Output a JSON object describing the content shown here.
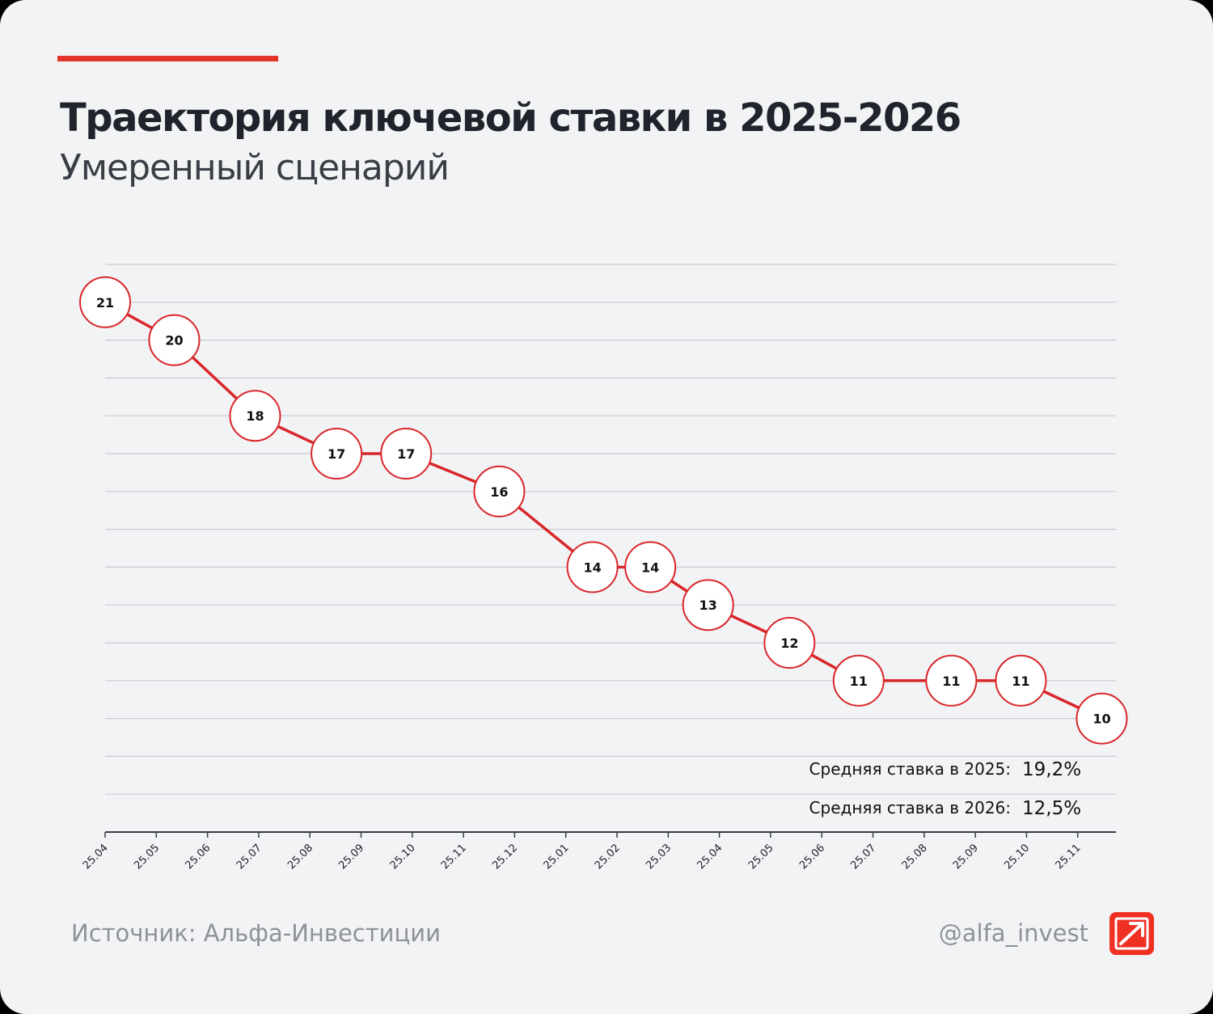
{
  "header": {
    "title": "Траектория ключевой ставки в 2025-2026",
    "subtitle": "Умеренный сценарий"
  },
  "footer": {
    "source": "Источник: Альфа-Инвестиции",
    "handle": "@alfa_invest"
  },
  "colors": {
    "accent": "#e4352a",
    "line": "#d9262a",
    "marker_fill": "#ffffff",
    "grid": "#c9cbd0",
    "axis": "#3a3d45",
    "text": "#20232b"
  },
  "chart_data": {
    "type": "line",
    "title": "Траектория ключевой ставки в 2025-2026",
    "subtitle": "Умеренный сценарий",
    "x_tick_labels": [
      "25.04",
      "25.05",
      "25.06",
      "25.07",
      "25.08",
      "25.09",
      "25.10",
      "25.11",
      "25.12",
      "25.01",
      "25.02",
      "25.03",
      "25.04",
      "25.05",
      "25.06",
      "25.07",
      "25.08",
      "25.09",
      "25.10",
      "25.11"
    ],
    "series": [
      {
        "points": [
          {
            "x": 0,
            "y": 21
          },
          {
            "x": 1.35,
            "y": 20
          },
          {
            "x": 2.93,
            "y": 18
          },
          {
            "x": 4.52,
            "y": 17
          },
          {
            "x": 5.88,
            "y": 17
          },
          {
            "x": 7.7,
            "y": 16
          },
          {
            "x": 9.52,
            "y": 14
          },
          {
            "x": 10.65,
            "y": 14
          },
          {
            "x": 11.78,
            "y": 13
          },
          {
            "x": 13.37,
            "y": 12
          },
          {
            "x": 14.72,
            "y": 11
          },
          {
            "x": 16.53,
            "y": 11
          },
          {
            "x": 17.89,
            "y": 11
          },
          {
            "x": 19.47,
            "y": 10
          }
        ]
      }
    ],
    "xlim": [
      0,
      19.47
    ],
    "ylim": [
      7,
      22
    ],
    "grid": true,
    "legend": "none",
    "annotations": [
      {
        "label": "Средняя ставка в 2025:",
        "value": "19,2%"
      },
      {
        "label": "Средняя ставка в 2026:",
        "value": "12,5%"
      }
    ]
  }
}
